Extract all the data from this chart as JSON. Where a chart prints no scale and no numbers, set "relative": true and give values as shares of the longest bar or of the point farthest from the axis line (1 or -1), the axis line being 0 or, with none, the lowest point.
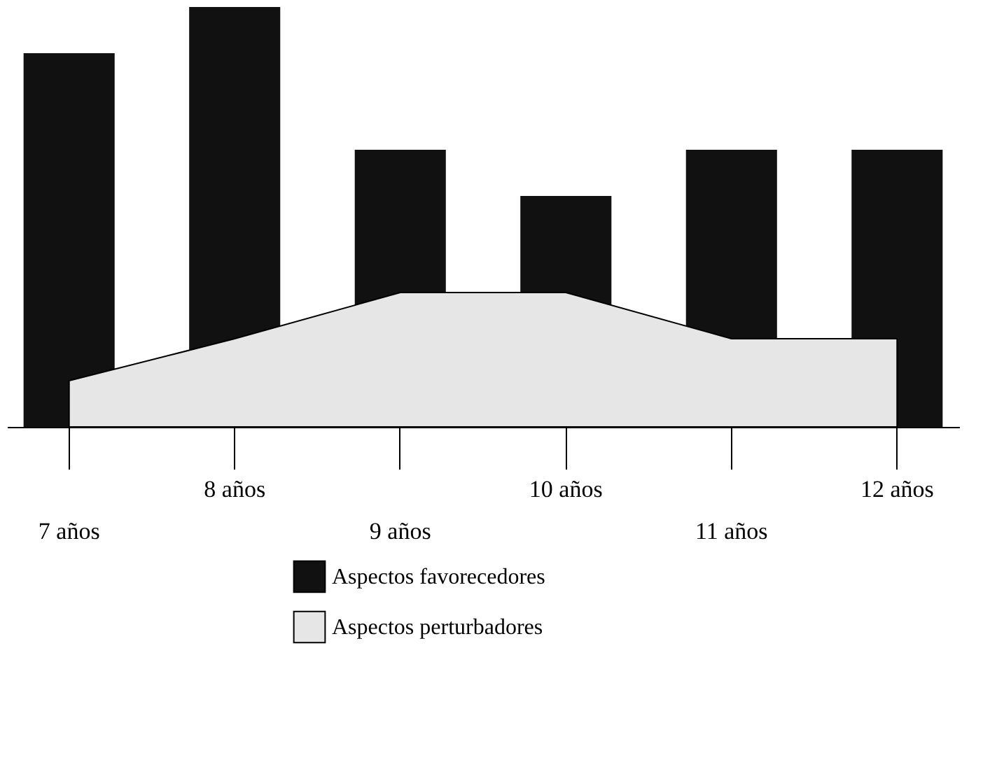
{
  "chart_data": {
    "type": "bar",
    "relative": true,
    "legend": "bottom",
    "categories": [
      "7 años",
      "8 años",
      "9 años",
      "10 años",
      "11 años",
      "12 años"
    ],
    "series": [
      {
        "name": "Aspectos favorecedores",
        "color": "#111111",
        "values": [
          0.89,
          1,
          0.66,
          0.55,
          0.66,
          0.66
        ]
      },
      {
        "name": "Aspectos perturbadores",
        "type": "area",
        "color": "#e6e6e6",
        "values": [
          0.11,
          0.21,
          0.32,
          0.32,
          0.21,
          0.21
        ]
      }
    ]
  }
}
